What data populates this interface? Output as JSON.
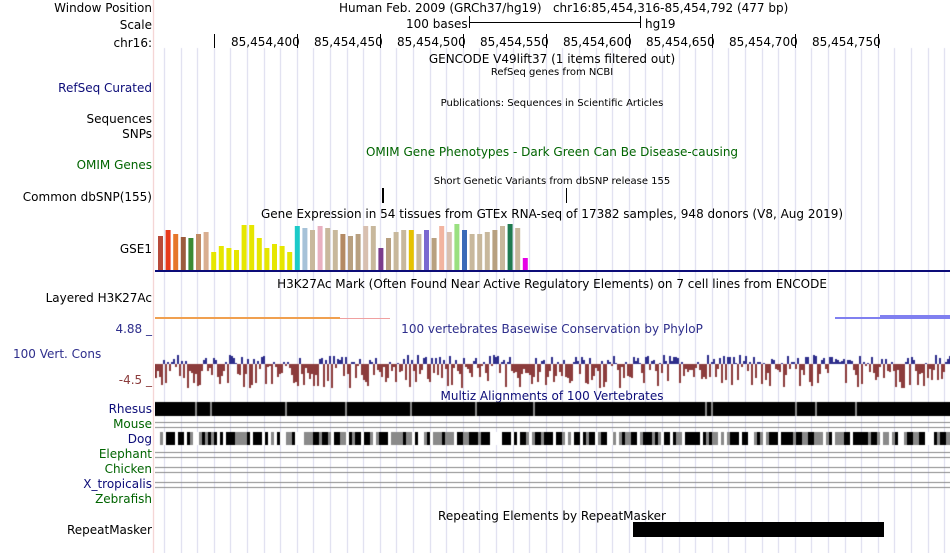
{
  "header": {
    "window_position_label": "Window Position",
    "window_position_value": "Human Feb. 2009 (GRCh37/hg19)   chr16:85,454,316-85,454,792 (477 bp)",
    "scale_label": "Scale",
    "scale_text": "100 bases",
    "scale_assembly": "hg19",
    "chrom_label": "chr16:",
    "ruler_ticks": [
      "85,454,400",
      "85,454,450",
      "85,454,500",
      "85,454,550",
      "85,454,600",
      "85,454,650",
      "85,454,700",
      "85,454,750"
    ]
  },
  "tracks": {
    "gencode_title": "GENCODE V49lift37 (1 items filtered out)",
    "refseq_subtitle": "RefSeq genes from NCBI",
    "refseq_label": "RefSeq Curated",
    "publications_title": "Publications: Sequences in Scientific Articles",
    "sequences_label": "Sequences",
    "snps_label": "SNPs",
    "omim_label": "OMIM Genes",
    "omim_title": "OMIM Gene Phenotypes - Dark Green Can Be Disease-causing",
    "dbsnp_title": "Short Genetic Variants from dbSNP release 155",
    "dbsnp_label": "Common dbSNP(155)",
    "gtex_title": "Gene Expression in 54 tissues from GTEx RNA-seq of 17382 samples, 948 donors (V8, Aug 2019)",
    "gtex_label": "GSE1",
    "h3k27ac_title": "H3K27Ac Mark (Often Found Near Active Regulatory Elements) on 7 cell lines from ENCODE",
    "h3k27ac_label": "Layered H3K27Ac",
    "cons_max": "4.88 _",
    "cons_title": "100 vertebrates Basewise Conservation by PhyloP",
    "cons_label": "100 Vert. Cons",
    "cons_min": "-4.5 _",
    "multiz_title": "Multiz Alignments of 100 Vertebrates",
    "species": [
      "Rhesus",
      "Mouse",
      "Dog",
      "Elephant",
      "Chicken",
      "X_tropicalis",
      "Zebrafish"
    ],
    "repeat_title": "Repeating Elements by RepeatMasker",
    "repeat_label": "RepeatMasker"
  },
  "colors": {
    "refseq": "#0c0c78",
    "omim": "#006400",
    "cons_label": "#2e2e8c",
    "cons_pos": "#2e2e8c",
    "cons_neg": "#8c3c3c",
    "species": [
      "#0c0c78",
      "#006400",
      "#0c0c78",
      "#006400",
      "#006400",
      "#0c0c78",
      "#006400"
    ],
    "gtex_bars": [
      "#b84a3a",
      "#e8391c",
      "#e6772a",
      "#9b5b3c",
      "#3a8a34",
      "#c08a64",
      "#d9ae90",
      "#e6e600",
      "#e6e600",
      "#e6e600",
      "#e6e600",
      "#e6e600",
      "#e6e600",
      "#e6e600",
      "#e6e600",
      "#e6e600",
      "#e6e600",
      "#e6e600",
      "#1ccac8",
      "#a6c2d8",
      "#c8b89c",
      "#e8b0c0",
      "#c8b89c",
      "#c8b89c",
      "#b48a64",
      "#b8a080",
      "#b8a080",
      "#d8c0b0",
      "#c8b89c",
      "#7a3c8c",
      "#b8a080",
      "#c8b89c",
      "#c8b89c",
      "#e6c200",
      "#c8b89c",
      "#7a68d0",
      "#b8a080",
      "#f2b4a0",
      "#d8c0b0",
      "#9ae080",
      "#3a6ab8",
      "#c8b89c",
      "#c8b89c",
      "#c8b89c",
      "#b8a080",
      "#c8b89c",
      "#1f7a50",
      "#c8b89c",
      "#e600e6"
    ]
  }
}
